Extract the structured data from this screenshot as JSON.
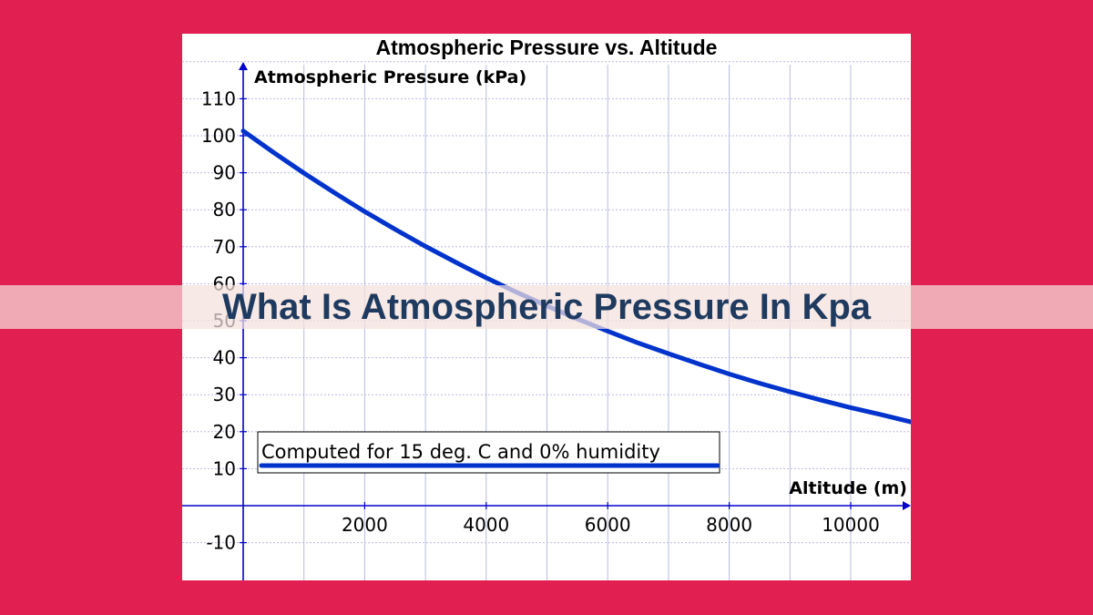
{
  "page": {
    "banner_title": "What Is Atmospheric Pressure In Kpa",
    "background_color": "#e21f51",
    "banner_text_color": "#1f3a5f"
  },
  "chart_data": {
    "type": "line",
    "title": "Atmospheric Pressure vs. Altitude",
    "xlabel": "Altitude (m)",
    "ylabel": "Atmospheric Pressure (kPa)",
    "xlim": [
      0,
      11000
    ],
    "ylim": [
      -20,
      120
    ],
    "x_ticks": [
      2000,
      4000,
      6000,
      8000,
      10000
    ],
    "y_ticks": [
      -10,
      10,
      20,
      30,
      40,
      50,
      60,
      70,
      80,
      90,
      100,
      110
    ],
    "grid": true,
    "annotation": "Computed for 15 deg. C and 0% humidity",
    "series": [
      {
        "color": "#0033cc",
        "x": [
          0,
          500,
          1000,
          1500,
          2000,
          2500,
          3000,
          3500,
          4000,
          4500,
          5000,
          5500,
          6000,
          6500,
          7000,
          7500,
          8000,
          8500,
          9000,
          9500,
          10000,
          10500,
          11000
        ],
        "values": [
          101.3,
          95.5,
          89.9,
          84.6,
          79.5,
          74.7,
          70.1,
          65.8,
          61.6,
          57.7,
          54.0,
          50.5,
          47.2,
          44.0,
          41.1,
          38.3,
          35.6,
          33.1,
          30.8,
          28.6,
          26.5,
          24.6,
          22.6
        ]
      }
    ]
  }
}
